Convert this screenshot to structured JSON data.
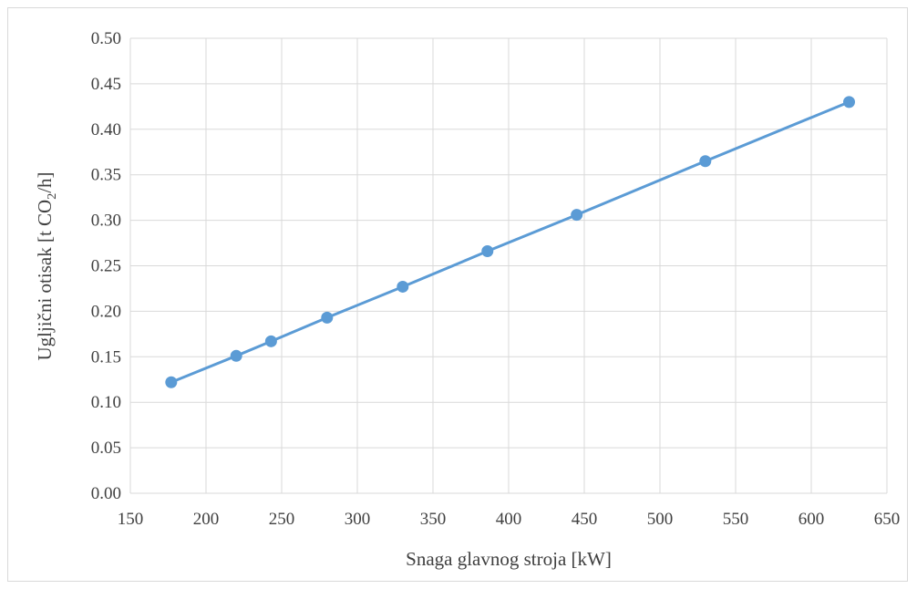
{
  "chart_data": {
    "type": "line",
    "xlabel": "Snaga glavnog stroja [kW]",
    "ylabel": {
      "prefix": "Ugljični otisak [t CO",
      "subscript": "2",
      "suffix": "/h]"
    },
    "xlim": [
      150,
      650
    ],
    "ylim": [
      0.0,
      0.5
    ],
    "x_ticks": [
      "150",
      "200",
      "250",
      "300",
      "350",
      "400",
      "450",
      "500",
      "550",
      "600",
      "650"
    ],
    "y_ticks": [
      "0.00",
      "0.05",
      "0.10",
      "0.15",
      "0.20",
      "0.25",
      "0.30",
      "0.35",
      "0.40",
      "0.45",
      "0.50"
    ],
    "grid": true,
    "legend": "none",
    "series": [
      {
        "color": "#5b9bd5",
        "x": [
          177,
          220,
          243,
          280,
          330,
          386,
          445,
          530,
          625
        ],
        "y": [
          0.122,
          0.151,
          0.167,
          0.193,
          0.227,
          0.266,
          0.306,
          0.365,
          0.43
        ]
      }
    ]
  }
}
